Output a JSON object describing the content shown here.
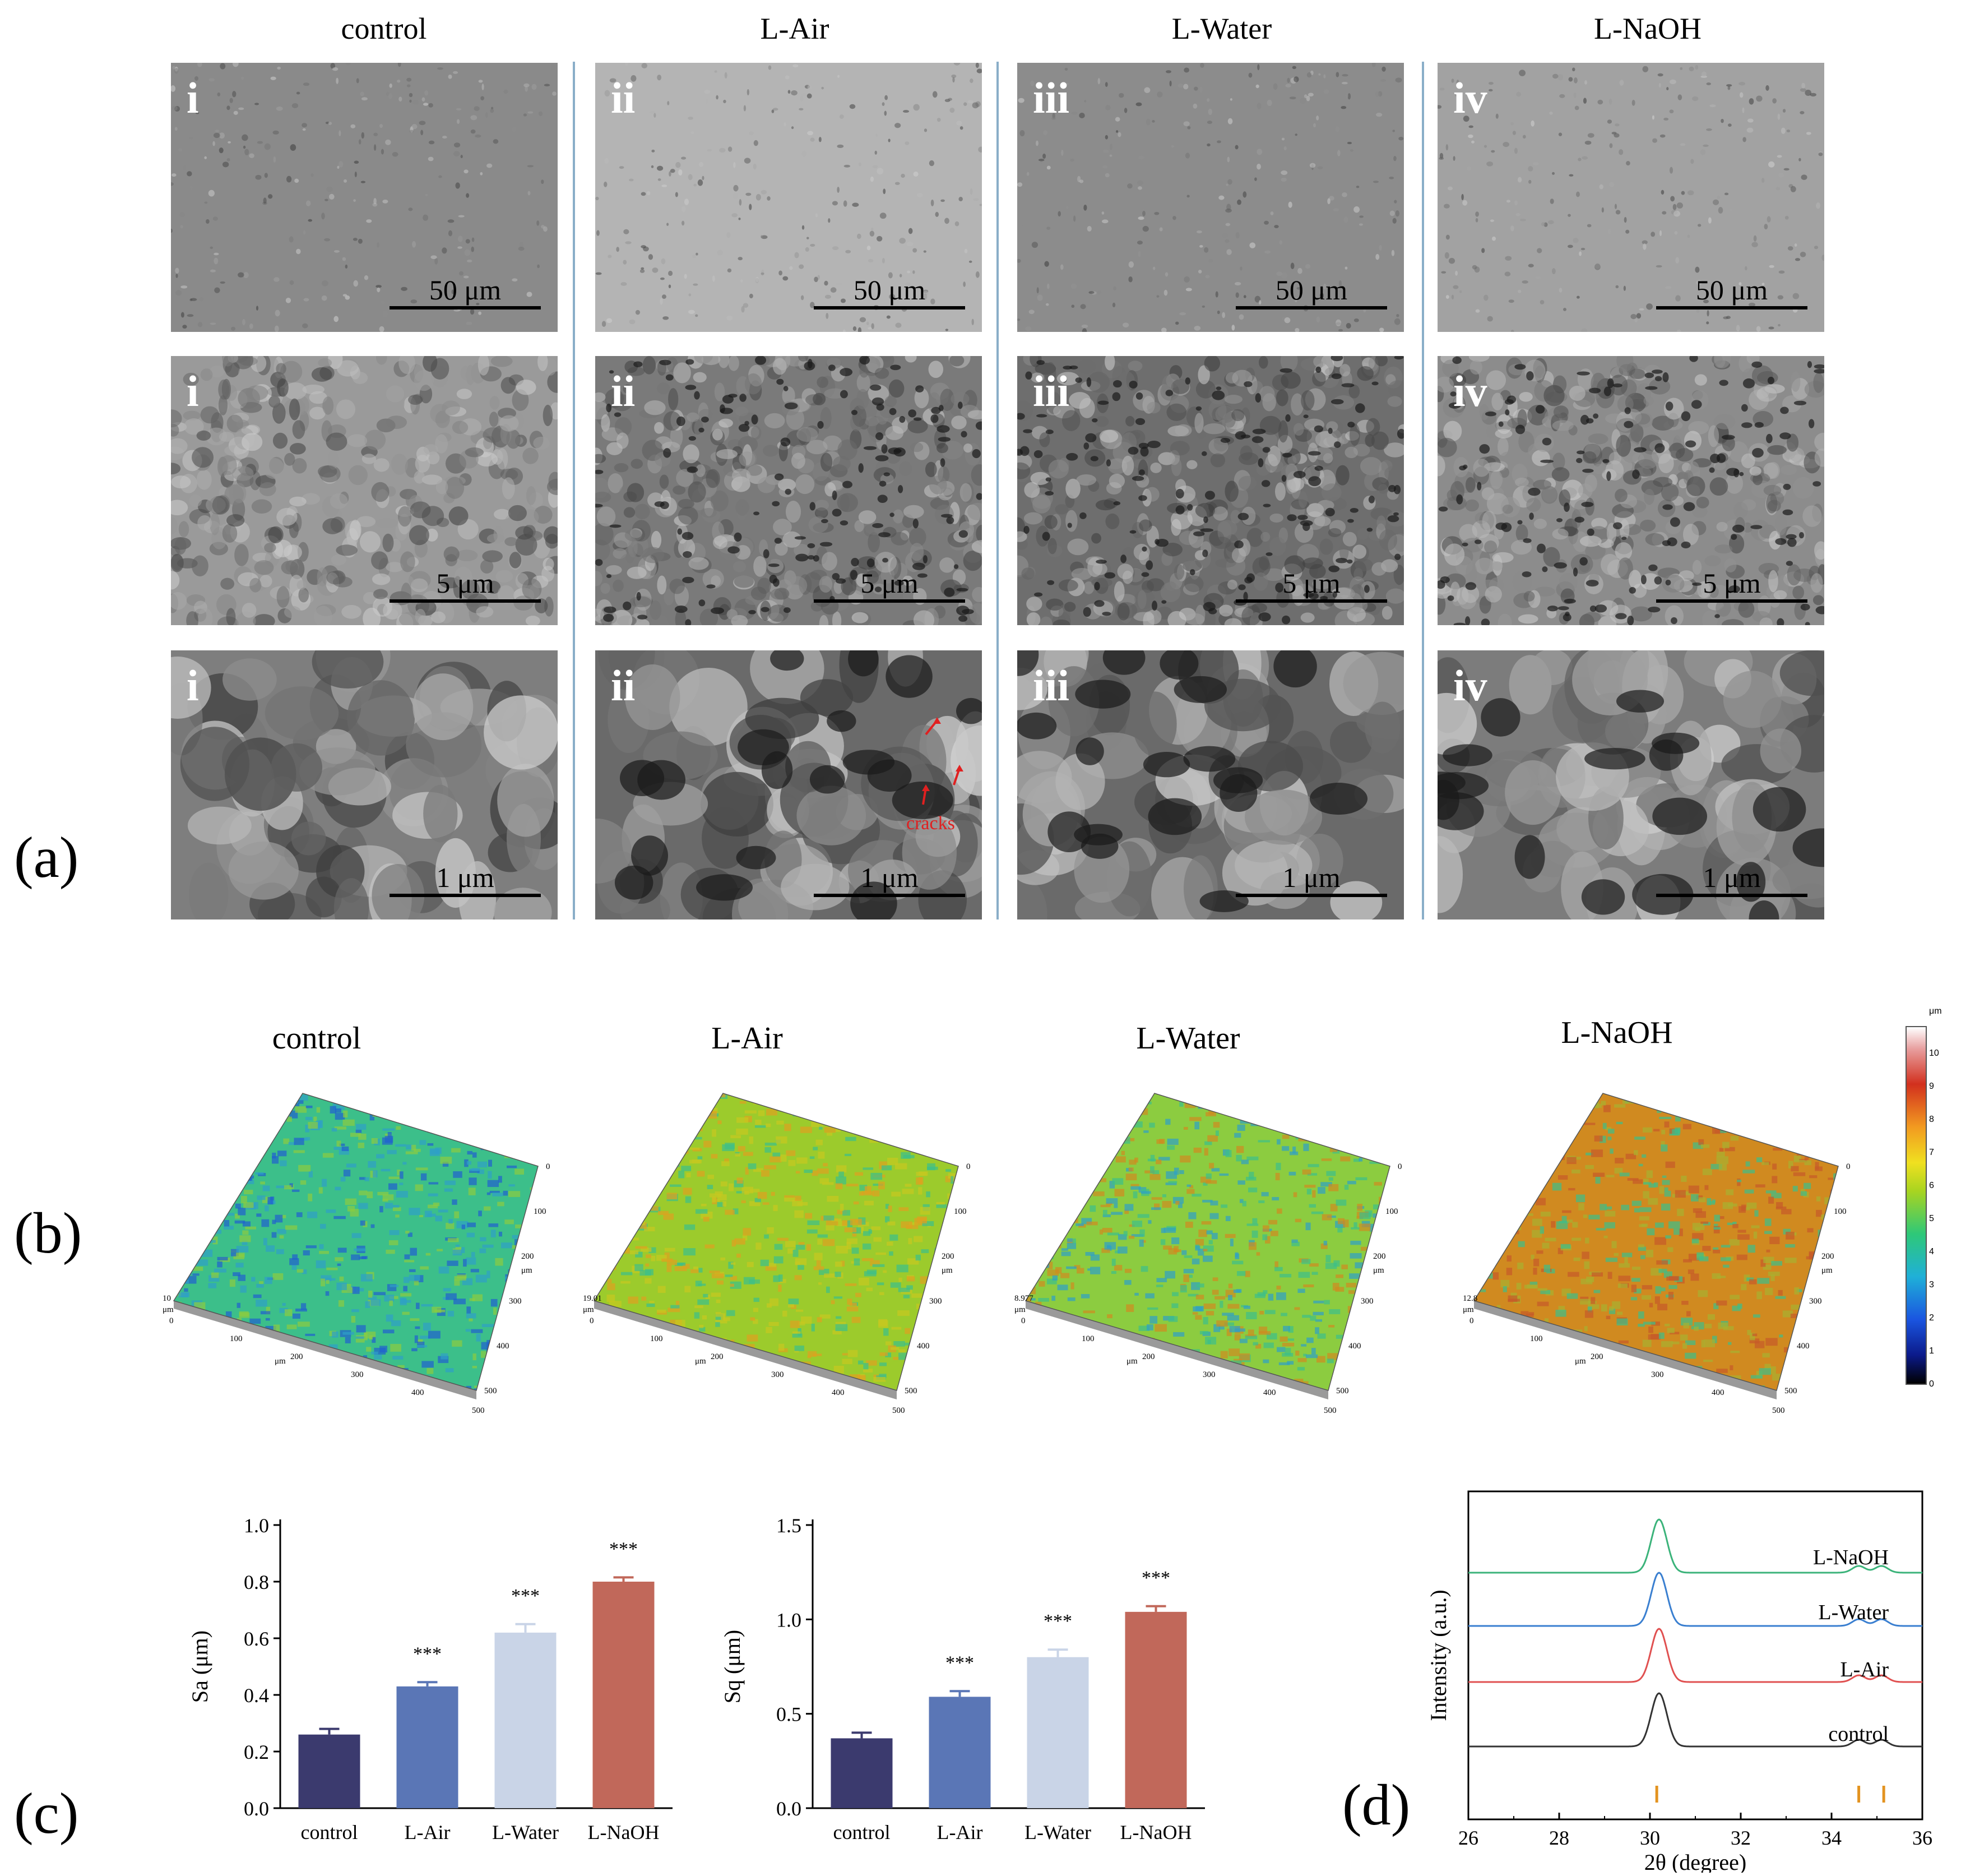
{
  "panel_a": {
    "label": "(a)",
    "columns": [
      "control",
      "L-Air",
      "L-Water",
      "L-NaOH"
    ],
    "romans": [
      "i",
      "ii",
      "iii",
      "iv"
    ],
    "scale_bars": [
      "50 μm",
      "5 μm",
      "1 μm"
    ],
    "annotation": "cracks"
  },
  "panel_b": {
    "label": "(b)",
    "titles": [
      "control",
      "L-Air",
      "L-Water",
      "L-NaOH"
    ],
    "z_max": [
      "10",
      "19.01",
      "8.977",
      "12.8"
    ],
    "unit": "μm",
    "axis_ticks": [
      "0",
      "100",
      "200",
      "300",
      "400",
      "500"
    ],
    "colorbar_unit": "μm",
    "colorbar_ticks": [
      "0",
      "1",
      "2",
      "3",
      "4",
      "5",
      "6",
      "7",
      "8",
      "9",
      "10"
    ]
  },
  "panel_c": {
    "label": "(c)"
  },
  "panel_d": {
    "label": "(d)"
  },
  "colors": {
    "control": "#3b3a6e",
    "L-Air": "#5a76b6",
    "L-Water": "#c9d4e7",
    "L-NaOH": "#c1685a",
    "xrd_control": "#333333",
    "xrd_air": "#e05050",
    "xrd_water": "#3a7fd0",
    "xrd_naoh": "#3bb37a",
    "ref_marker": "#e39320"
  },
  "chart_data": [
    {
      "type": "bar",
      "categories": [
        "control",
        "L-Air",
        "L-Water",
        "L-NaOH"
      ],
      "values": [
        0.26,
        0.43,
        0.62,
        0.8
      ],
      "errors": [
        0.02,
        0.015,
        0.03,
        0.015
      ],
      "significance": [
        "",
        "***",
        "***",
        "***"
      ],
      "ylabel": "Sa (μm)",
      "ylim": [
        0,
        1.0
      ],
      "yticks": [
        "0.0",
        "0.2",
        "0.4",
        "0.6",
        "0.8",
        "1.0"
      ]
    },
    {
      "type": "bar",
      "categories": [
        "control",
        "L-Air",
        "L-Water",
        "L-NaOH"
      ],
      "values": [
        0.37,
        0.59,
        0.8,
        1.04
      ],
      "errors": [
        0.03,
        0.03,
        0.04,
        0.03
      ],
      "significance": [
        "",
        "***",
        "***",
        "***"
      ],
      "ylabel": "Sq (μm)",
      "ylim": [
        0,
        1.5
      ],
      "yticks": [
        "0.0",
        "0.5",
        "1.0",
        "1.5"
      ]
    },
    {
      "type": "line",
      "series_names": [
        "control",
        "L-Air",
        "L-Water",
        "L-NaOH"
      ],
      "xlabel": "2θ (degree)",
      "ylabel": "Intensity (a.u.)",
      "xlim": [
        26,
        36
      ],
      "xticks": [
        "26",
        "28",
        "30",
        "32",
        "34",
        "36"
      ],
      "peaks_2theta": [
        30.2,
        34.6,
        35.1
      ],
      "reference_lines": [
        30.15,
        34.6,
        35.15
      ]
    }
  ]
}
